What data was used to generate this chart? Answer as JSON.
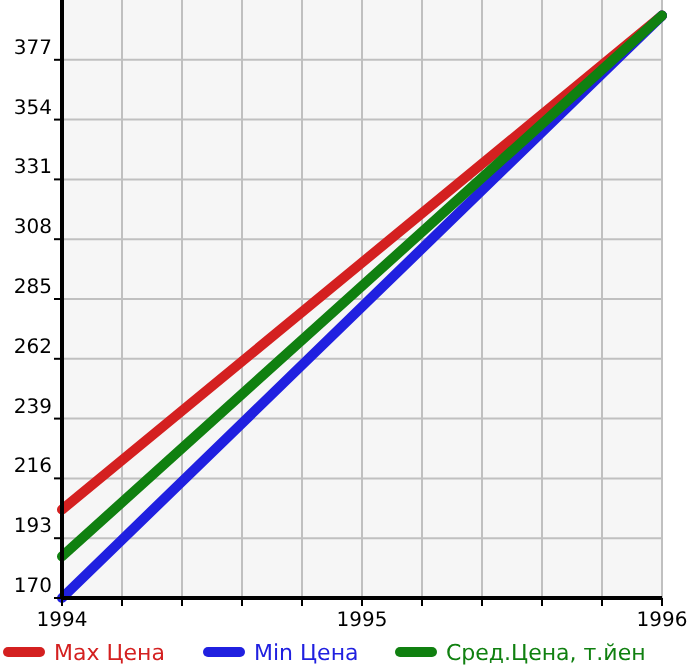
{
  "chart_data": {
    "type": "line",
    "x": [
      1994,
      1996
    ],
    "xlim": [
      1994,
      1996
    ],
    "xticks": [
      1994,
      {
        "value": 1994.2,
        "label": null
      },
      {
        "value": 1994.4,
        "label": null
      },
      {
        "value": 1994.6,
        "label": null
      },
      {
        "value": 1994.8,
        "label": null
      },
      1995,
      {
        "value": 1995.2,
        "label": null
      },
      {
        "value": 1995.4,
        "label": null
      },
      {
        "value": 1995.6,
        "label": null
      },
      {
        "value": 1995.8,
        "label": null
      },
      1996
    ],
    "ylim": [
      170,
      400
    ],
    "yticks": [
      170,
      193,
      216,
      239,
      262,
      285,
      308,
      331,
      354,
      377
    ],
    "grid": true,
    "legend": "bottom",
    "marker": "none",
    "line_style": "solid",
    "series": [
      {
        "name": "Max Цена",
        "color": "#d42020",
        "values": [
          204,
          394
        ]
      },
      {
        "name": "Min Цена",
        "color": "#2020e0",
        "values": [
          170,
          394
        ]
      },
      {
        "name": "Сред.Цена, т.йен",
        "color": "#108010",
        "values": [
          186,
          394
        ]
      }
    ]
  }
}
